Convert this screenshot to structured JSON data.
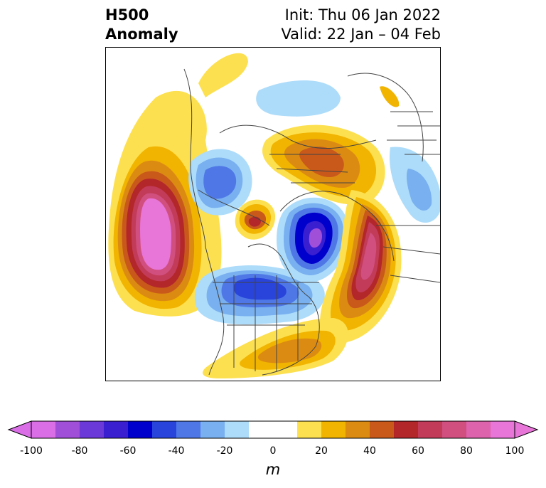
{
  "header": {
    "title_line1": "H500",
    "title_line2": "Anomaly",
    "init": "Init: Thu 06 Jan 2022",
    "valid": "Valid: 22 Jan – 04 Feb"
  },
  "colorbar": {
    "unit": "m",
    "ticks": [
      "-100",
      "-80",
      "-60",
      "-40",
      "-20",
      "0",
      "20",
      "40",
      "60",
      "80",
      "100"
    ],
    "colors": [
      "#d96ee6",
      "#a04fd9",
      "#6a39d8",
      "#3a1fd1",
      "#0000cc",
      "#2844db",
      "#4f78e6",
      "#78b0f0",
      "#addcfa",
      "#ffffff",
      "#ffffff",
      "#fde04f",
      "#f1b400",
      "#dc8b12",
      "#c9591b",
      "#b3262a",
      "#c23b58",
      "#d04f7f",
      "#de63ad",
      "#e875d8"
    ]
  },
  "map": {
    "projection": "polar-stereographic",
    "colors": {
      "neg20": "#addcfa",
      "neg30": "#78b0f0",
      "neg40": "#4f78e6",
      "neg50": "#2844db",
      "neg60": "#0000cc",
      "neg70": "#3a1fd1",
      "neg80": "#6a39d8",
      "pos10": "#fde04f",
      "pos20": "#f1b400",
      "pos30": "#dc8b12",
      "pos40": "#c9591b",
      "pos50": "#b3262a",
      "pos60": "#c23b58",
      "pos70": "#d04f7f",
      "pos80": "#de63ad",
      "pos90": "#e875d8"
    }
  }
}
